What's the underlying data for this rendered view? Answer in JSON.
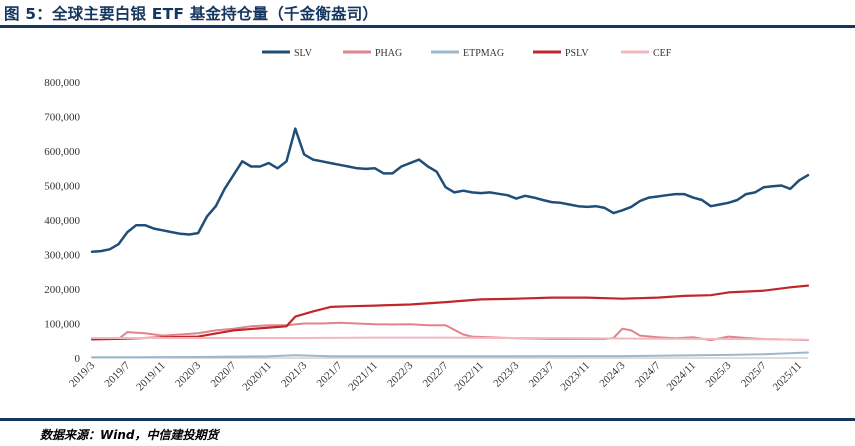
{
  "header": {
    "title": "图 5：全球主要白银 ETF 基金持仓量（千金衡盎司）"
  },
  "footer": {
    "source": "数据来源：Wind，中信建投期货"
  },
  "chart_data": {
    "type": "line",
    "title": "图 5：全球主要白银 ETF 基金持仓量（千金衡盎司）",
    "xlabel": "",
    "ylabel": "",
    "ylim": [
      0,
      800000
    ],
    "y_ticks": [
      0,
      100000,
      200000,
      300000,
      400000,
      500000,
      600000,
      700000,
      800000
    ],
    "y_tick_labels": [
      "0",
      "100,000",
      "200,000",
      "300,000",
      "400,000",
      "500,000",
      "600,000",
      "700,000",
      "800,000"
    ],
    "x_range": [
      "2019-03",
      "2025-12"
    ],
    "x_ticks": [
      "2019-03",
      "2019-07",
      "2019-11",
      "2020-03",
      "2020-07",
      "2020-11",
      "2021-03",
      "2021-07",
      "2021-11",
      "2022-03",
      "2022-07",
      "2022-11",
      "2023-03",
      "2023-07",
      "2023-11",
      "2024-03",
      "2024-07",
      "2024-11",
      "2025-03",
      "2025-07",
      "2025-11"
    ],
    "x_tick_labels": [
      "2019/3",
      "2019/7",
      "2019/11",
      "2020/3",
      "2020/7",
      "2020/11",
      "2021/3",
      "2021/7",
      "2021/11",
      "2022/3",
      "2022/7",
      "2022/11",
      "2023/3",
      "2023/7",
      "2023/11",
      "2024/3",
      "2024/7",
      "2024/11",
      "2025/3",
      "2025/7",
      "2025/11"
    ],
    "grid": false,
    "legend": "top",
    "series": [
      {
        "name": "SLV",
        "color": "#1f4e79",
        "width": 2.5,
        "points": [
          [
            "2019-03",
            308000
          ],
          [
            "2019-04",
            310000
          ],
          [
            "2019-05",
            315000
          ],
          [
            "2019-06",
            330000
          ],
          [
            "2019-07",
            365000
          ],
          [
            "2019-08",
            385000
          ],
          [
            "2019-09",
            385000
          ],
          [
            "2019-10",
            375000
          ],
          [
            "2019-11",
            370000
          ],
          [
            "2019-12",
            365000
          ],
          [
            "2020-01",
            360000
          ],
          [
            "2020-02",
            358000
          ],
          [
            "2020-03",
            362000
          ],
          [
            "2020-04",
            410000
          ],
          [
            "2020-05",
            440000
          ],
          [
            "2020-06",
            490000
          ],
          [
            "2020-07",
            530000
          ],
          [
            "2020-08",
            570000
          ],
          [
            "2020-09",
            555000
          ],
          [
            "2020-10",
            555000
          ],
          [
            "2020-11",
            565000
          ],
          [
            "2020-12",
            550000
          ],
          [
            "2021-01",
            570000
          ],
          [
            "2021-02",
            665000
          ],
          [
            "2021-03",
            590000
          ],
          [
            "2021-04",
            575000
          ],
          [
            "2021-05",
            570000
          ],
          [
            "2021-06",
            565000
          ],
          [
            "2021-07",
            560000
          ],
          [
            "2021-08",
            555000
          ],
          [
            "2021-09",
            550000
          ],
          [
            "2021-10",
            548000
          ],
          [
            "2021-11",
            550000
          ],
          [
            "2021-12",
            535000
          ],
          [
            "2022-01",
            535000
          ],
          [
            "2022-02",
            555000
          ],
          [
            "2022-03",
            565000
          ],
          [
            "2022-04",
            575000
          ],
          [
            "2022-05",
            555000
          ],
          [
            "2022-06",
            540000
          ],
          [
            "2022-07",
            495000
          ],
          [
            "2022-08",
            480000
          ],
          [
            "2022-09",
            485000
          ],
          [
            "2022-10",
            480000
          ],
          [
            "2022-11",
            478000
          ],
          [
            "2022-12",
            480000
          ],
          [
            "2023-01",
            476000
          ],
          [
            "2023-02",
            472000
          ],
          [
            "2023-03",
            462000
          ],
          [
            "2023-04",
            470000
          ],
          [
            "2023-05",
            465000
          ],
          [
            "2023-06",
            458000
          ],
          [
            "2023-07",
            452000
          ],
          [
            "2023-08",
            450000
          ],
          [
            "2023-09",
            445000
          ],
          [
            "2023-10",
            440000
          ],
          [
            "2023-11",
            438000
          ],
          [
            "2023-12",
            440000
          ],
          [
            "2024-01",
            435000
          ],
          [
            "2024-02",
            420000
          ],
          [
            "2024-03",
            428000
          ],
          [
            "2024-04",
            438000
          ],
          [
            "2024-05",
            455000
          ],
          [
            "2024-06",
            465000
          ],
          [
            "2024-07",
            468000
          ],
          [
            "2024-08",
            472000
          ],
          [
            "2024-09",
            475000
          ],
          [
            "2024-10",
            475000
          ],
          [
            "2024-11",
            465000
          ],
          [
            "2024-12",
            458000
          ],
          [
            "2025-01",
            440000
          ],
          [
            "2025-02",
            445000
          ],
          [
            "2025-03",
            450000
          ],
          [
            "2025-04",
            458000
          ],
          [
            "2025-05",
            475000
          ],
          [
            "2025-06",
            480000
          ],
          [
            "2025-07",
            495000
          ],
          [
            "2025-08",
            498000
          ],
          [
            "2025-09",
            500000
          ],
          [
            "2025-10",
            490000
          ],
          [
            "2025-11",
            515000
          ],
          [
            "2025-12",
            530000
          ]
        ]
      },
      {
        "name": "PHAG",
        "color": "#e0838c",
        "width": 2,
        "points": [
          [
            "2019-03",
            55000
          ],
          [
            "2019-06",
            55000
          ],
          [
            "2019-07",
            75000
          ],
          [
            "2019-09",
            72000
          ],
          [
            "2019-11",
            65000
          ],
          [
            "2020-01",
            68000
          ],
          [
            "2020-03",
            72000
          ],
          [
            "2020-05",
            80000
          ],
          [
            "2020-07",
            85000
          ],
          [
            "2020-09",
            92000
          ],
          [
            "2020-11",
            95000
          ],
          [
            "2021-01",
            95000
          ],
          [
            "2021-03",
            100000
          ],
          [
            "2021-05",
            100000
          ],
          [
            "2021-07",
            102000
          ],
          [
            "2021-09",
            100000
          ],
          [
            "2021-11",
            98000
          ],
          [
            "2022-01",
            97000
          ],
          [
            "2022-03",
            98000
          ],
          [
            "2022-05",
            95000
          ],
          [
            "2022-07",
            95000
          ],
          [
            "2022-09",
            68000
          ],
          [
            "2022-10",
            62000
          ],
          [
            "2022-12",
            60000
          ],
          [
            "2023-03",
            57000
          ],
          [
            "2023-07",
            55000
          ],
          [
            "2023-11",
            55000
          ],
          [
            "2024-01",
            55000
          ],
          [
            "2024-02",
            58000
          ],
          [
            "2024-03",
            85000
          ],
          [
            "2024-04",
            80000
          ],
          [
            "2024-05",
            65000
          ],
          [
            "2024-07",
            60000
          ],
          [
            "2024-09",
            57000
          ],
          [
            "2024-11",
            60000
          ],
          [
            "2025-01",
            52000
          ],
          [
            "2025-03",
            62000
          ],
          [
            "2025-05",
            58000
          ],
          [
            "2025-07",
            55000
          ],
          [
            "2025-09",
            54000
          ],
          [
            "2025-12",
            52000
          ]
        ]
      },
      {
        "name": "ETPMAG",
        "color": "#9db8cc",
        "width": 2,
        "points": [
          [
            "2019-03",
            2000
          ],
          [
            "2020-03",
            3000
          ],
          [
            "2020-11",
            5000
          ],
          [
            "2021-02",
            8000
          ],
          [
            "2021-06",
            5000
          ],
          [
            "2022-03",
            5000
          ],
          [
            "2023-03",
            5000
          ],
          [
            "2024-03",
            5500
          ],
          [
            "2025-03",
            9000
          ],
          [
            "2025-07",
            11000
          ],
          [
            "2025-12",
            16000
          ]
        ]
      },
      {
        "name": "PSLV",
        "color": "#c0272d",
        "width": 2.2,
        "points": [
          [
            "2019-03",
            54000
          ],
          [
            "2019-07",
            56000
          ],
          [
            "2019-11",
            60000
          ],
          [
            "2020-03",
            62000
          ],
          [
            "2020-07",
            80000
          ],
          [
            "2020-11",
            88000
          ],
          [
            "2021-01",
            92000
          ],
          [
            "2021-02",
            120000
          ],
          [
            "2021-04",
            135000
          ],
          [
            "2021-06",
            148000
          ],
          [
            "2021-08",
            150000
          ],
          [
            "2021-11",
            152000
          ],
          [
            "2022-03",
            155000
          ],
          [
            "2022-07",
            162000
          ],
          [
            "2022-11",
            170000
          ],
          [
            "2023-03",
            172000
          ],
          [
            "2023-07",
            175000
          ],
          [
            "2023-11",
            175000
          ],
          [
            "2024-03",
            172000
          ],
          [
            "2024-07",
            175000
          ],
          [
            "2024-10",
            180000
          ],
          [
            "2025-01",
            182000
          ],
          [
            "2025-03",
            190000
          ],
          [
            "2025-07",
            195000
          ],
          [
            "2025-10",
            205000
          ],
          [
            "2025-12",
            210000
          ]
        ]
      },
      {
        "name": "CEF",
        "color": "#f2b8c0",
        "width": 2,
        "points": [
          [
            "2019-03",
            58000
          ],
          [
            "2019-11",
            58000
          ],
          [
            "2020-07",
            58000
          ],
          [
            "2021-03",
            58000
          ],
          [
            "2021-11",
            59000
          ],
          [
            "2022-07",
            59000
          ],
          [
            "2023-03",
            58000
          ],
          [
            "2023-11",
            57000
          ],
          [
            "2024-07",
            56000
          ],
          [
            "2025-03",
            55000
          ],
          [
            "2025-12",
            53000
          ]
        ]
      }
    ]
  }
}
